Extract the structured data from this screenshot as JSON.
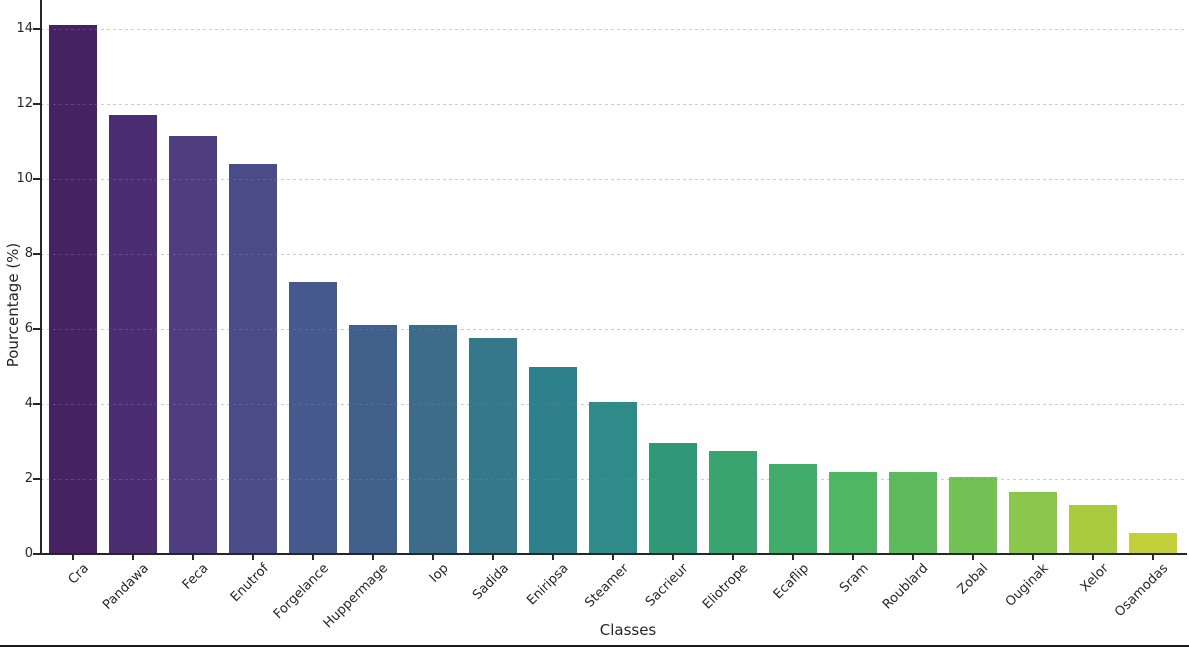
{
  "chart_data": {
    "type": "bar",
    "title": "",
    "xlabel": "Classes",
    "ylabel": "Pourcentage (%)",
    "categories": [
      "Cra",
      "Pandawa",
      "Feca",
      "Enutrof",
      "Forgelance",
      "Huppermage",
      "Iop",
      "Sadida",
      "Eniripsa",
      "Steamer",
      "Sacrieur",
      "Eliotrope",
      "Ecaflip",
      "Sram",
      "Roublard",
      "Zobal",
      "Ouginak",
      "Xelor",
      "Osamodas"
    ],
    "values": [
      14.1,
      11.7,
      11.15,
      10.4,
      7.25,
      6.1,
      6.1,
      5.75,
      5.0,
      4.05,
      2.95,
      2.75,
      2.4,
      2.2,
      2.2,
      2.05,
      1.65,
      1.3,
      0.55
    ],
    "bar_colors": [
      "#462262",
      "#4b2e72",
      "#4e3e80",
      "#4a4c88",
      "#46598c",
      "#41618c",
      "#3d6c89",
      "#36788b",
      "#2e818c",
      "#2e8b89",
      "#319877",
      "#3aa471",
      "#42ad6b",
      "#4fb663",
      "#5dba5d",
      "#74c156",
      "#8bc64d",
      "#a9cb3f",
      "#c3cf3b"
    ],
    "palette": "viridis",
    "yticks": [
      0,
      2,
      4,
      6,
      8,
      10,
      12,
      14
    ],
    "ylim": [
      0,
      14.75
    ],
    "grid": "horizontal-dashed",
    "legend": "none",
    "axis_color": "#262626"
  }
}
